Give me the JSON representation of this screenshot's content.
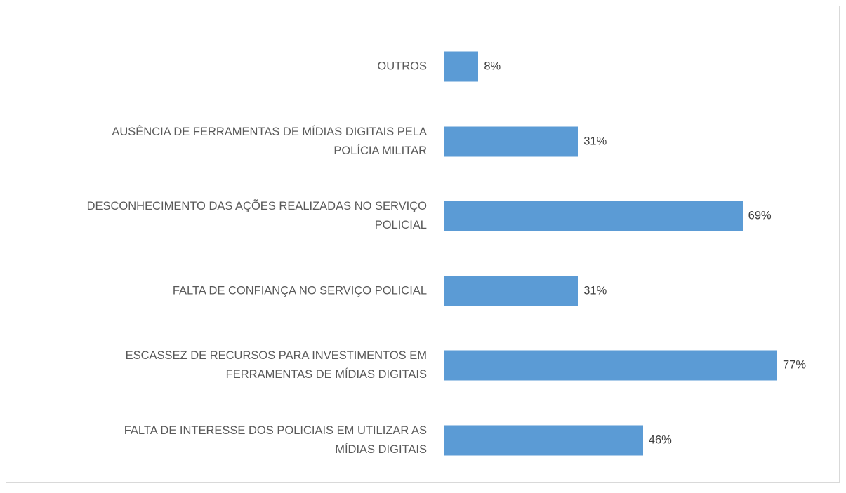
{
  "chart_data": {
    "type": "bar",
    "orientation": "horizontal",
    "categories": [
      "OUTROS",
      "AUSÊNCIA DE FERRAMENTAS DE MÍDIAS DIGITAIS PELA\nPOLÍCIA MILITAR",
      "DESCONHECIMENTO DAS AÇÕES REALIZADAS NO SERVIÇO\nPOLICIAL",
      "FALTA DE CONFIANÇA NO SERVIÇO POLICIAL",
      "ESCASSEZ DE RECURSOS PARA INVESTIMENTOS EM\nFERRAMENTAS DE MÍDIAS DIGITAIS",
      "FALTA DE INTERESSE DOS POLICIAIS EM UTILIZAR AS\nMÍDIAS DIGITAIS"
    ],
    "values": [
      8,
      31,
      69,
      31,
      77,
      46
    ],
    "value_labels": [
      "8%",
      "31%",
      "69%",
      "31%",
      "77%",
      "46%"
    ],
    "color": "#5b9bd5"
  }
}
